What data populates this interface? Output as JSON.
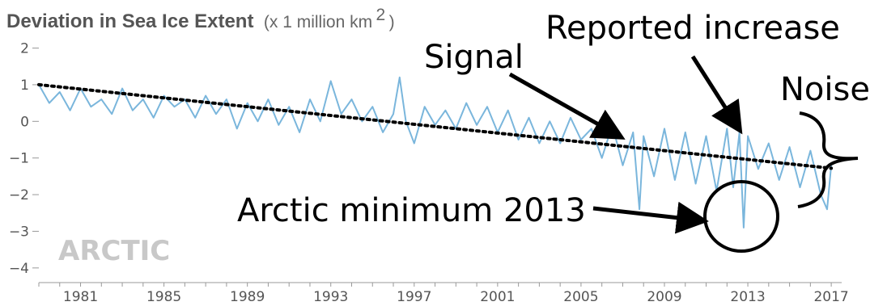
{
  "chart_data": {
    "type": "line",
    "title": "Deviation in Sea Ice Extent",
    "units_prefix": "(x 1 million km",
    "units_sup": "2",
    "units_suffix": ")",
    "watermark": "ARCTIC",
    "xlim": [
      1979,
      2017.5
    ],
    "ylim": [
      -4.4,
      2.1
    ],
    "y_ticks": [
      "2",
      "1",
      "0",
      "−1",
      "−2",
      "−3",
      "−4"
    ],
    "y_tick_values": [
      2,
      1,
      0,
      -1,
      -2,
      -3,
      -4
    ],
    "x_ticks": [
      "1981",
      "1985",
      "1989",
      "1993",
      "1997",
      "2001",
      "2005",
      "2009",
      "2013",
      "2017"
    ],
    "x_tick_values": [
      1981,
      1985,
      1989,
      1993,
      1997,
      2001,
      2005,
      2009,
      2013,
      2017
    ],
    "series": [
      {
        "style": "solid",
        "color": "#7ab6dc",
        "x": [
          1979.0,
          1979.5,
          1980.0,
          1980.5,
          1981.0,
          1981.5,
          1982.0,
          1982.5,
          1983.0,
          1983.5,
          1984.0,
          1984.5,
          1985.0,
          1985.5,
          1986.0,
          1986.5,
          1987.0,
          1987.5,
          1988.0,
          1988.5,
          1989.0,
          1989.5,
          1990.0,
          1990.5,
          1991.0,
          1991.5,
          1992.0,
          1992.5,
          1993.0,
          1993.5,
          1994.0,
          1994.5,
          1995.0,
          1995.5,
          1996.0,
          1996.3,
          1996.6,
          1997.0,
          1997.5,
          1998.0,
          1998.5,
          1999.0,
          1999.5,
          2000.0,
          2000.5,
          2001.0,
          2001.5,
          2002.0,
          2002.5,
          2003.0,
          2003.5,
          2004.0,
          2004.5,
          2005.0,
          2005.5,
          2006.0,
          2006.5,
          2007.0,
          2007.5,
          2007.8,
          2008.0,
          2008.5,
          2009.0,
          2009.5,
          2010.0,
          2010.5,
          2011.0,
          2011.5,
          2012.0,
          2012.3,
          2012.6,
          2012.8,
          2013.0,
          2013.5,
          2014.0,
          2014.5,
          2015.0,
          2015.5,
          2016.0,
          2016.5,
          2016.8,
          2017.0
        ],
        "y": [
          1.0,
          0.5,
          0.8,
          0.3,
          0.9,
          0.4,
          0.6,
          0.2,
          0.9,
          0.3,
          0.6,
          0.1,
          0.7,
          0.4,
          0.6,
          0.1,
          0.7,
          0.2,
          0.6,
          -0.2,
          0.5,
          0.0,
          0.6,
          -0.1,
          0.4,
          -0.3,
          0.6,
          0.0,
          1.1,
          0.2,
          0.6,
          0.0,
          0.4,
          -0.3,
          0.2,
          1.2,
          0.0,
          -0.6,
          0.4,
          -0.1,
          0.3,
          -0.2,
          0.5,
          -0.1,
          0.4,
          -0.3,
          0.3,
          -0.5,
          0.1,
          -0.6,
          0.0,
          -0.6,
          0.1,
          -0.5,
          -0.2,
          -1.0,
          -0.1,
          -1.2,
          -0.3,
          -2.4,
          -0.4,
          -1.5,
          -0.2,
          -1.6,
          -0.3,
          -1.7,
          -0.4,
          -1.9,
          -0.2,
          -1.8,
          -0.3,
          -2.9,
          -0.4,
          -1.3,
          -0.6,
          -1.6,
          -0.7,
          -1.8,
          -0.8,
          -2.0,
          -2.4,
          -1.2
        ]
      },
      {
        "style": "dotted",
        "color": "#000000",
        "x": [
          1979.0,
          2017.0
        ],
        "y": [
          1.0,
          -1.28
        ]
      }
    ],
    "annotations": [
      {
        "text": "Signal"
      },
      {
        "text": "Reported increase"
      },
      {
        "text": "Noise"
      },
      {
        "text": "Arctic minimum 2013"
      }
    ]
  }
}
